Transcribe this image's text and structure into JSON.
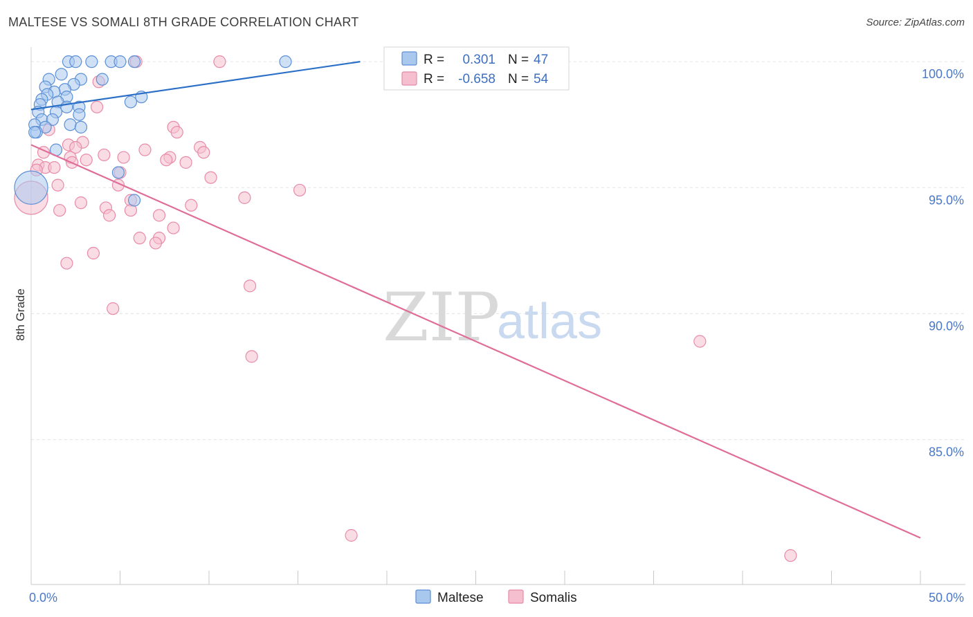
{
  "title": "MALTESE VS SOMALI 8TH GRADE CORRELATION CHART",
  "source": "Source: ZipAtlas.com",
  "watermark": {
    "zip": "ZIP",
    "atlas": "atlas"
  },
  "colors": {
    "maltese_fill": "#a9c8ee",
    "maltese_stroke": "#5b8fd6",
    "maltese_line": "#2b6fc7",
    "somali_fill": "#f6bfd0",
    "somali_stroke": "#e88aa8",
    "somali_line": "#e06d98",
    "grid": "#e3e3e3",
    "tick_text": "#4a78c8"
  },
  "legend": {
    "rows": [
      {
        "r_label": "R =",
        "r_value": "0.301",
        "n_label": "N =",
        "n_value": "47"
      },
      {
        "r_label": "R =",
        "r_value": "-0.658",
        "n_label": "N =",
        "n_value": "54"
      }
    ]
  },
  "bottom_legend": [
    "Maltese",
    "Somalis"
  ],
  "chart_data": {
    "type": "scatter",
    "title": "MALTESE VS SOMALI 8TH GRADE CORRELATION CHART",
    "xlabel": "",
    "ylabel": "8th Grade",
    "xlim": [
      0,
      50
    ],
    "ylim": [
      79.8,
      100.8
    ],
    "x_tick_labels": [
      "0.0%",
      "50.0%"
    ],
    "y_ticks": [
      100,
      95,
      90,
      85
    ],
    "y_tick_labels": [
      "100.0%",
      "95.0%",
      "90.0%",
      "85.0%"
    ],
    "series": [
      {
        "name": "Maltese",
        "r": 0.301,
        "n": 47,
        "trend": {
          "x": [
            0,
            18.5
          ],
          "y": [
            98.1,
            100.0
          ]
        },
        "points": [
          {
            "x": 2.1,
            "y": 100.0
          },
          {
            "x": 2.5,
            "y": 100.0
          },
          {
            "x": 3.4,
            "y": 100.0
          },
          {
            "x": 4.5,
            "y": 100.0
          },
          {
            "x": 5.0,
            "y": 100.0
          },
          {
            "x": 5.8,
            "y": 100.0
          },
          {
            "x": 14.3,
            "y": 100.0
          },
          {
            "x": 1.7,
            "y": 99.5
          },
          {
            "x": 1.0,
            "y": 99.3
          },
          {
            "x": 2.8,
            "y": 99.3
          },
          {
            "x": 4.0,
            "y": 99.3
          },
          {
            "x": 2.4,
            "y": 99.1
          },
          {
            "x": 0.8,
            "y": 99.0
          },
          {
            "x": 1.9,
            "y": 98.9
          },
          {
            "x": 1.3,
            "y": 98.8
          },
          {
            "x": 0.9,
            "y": 98.7
          },
          {
            "x": 2.0,
            "y": 98.6
          },
          {
            "x": 6.2,
            "y": 98.6
          },
          {
            "x": 0.6,
            "y": 98.5
          },
          {
            "x": 1.5,
            "y": 98.4
          },
          {
            "x": 5.6,
            "y": 98.4
          },
          {
            "x": 0.5,
            "y": 98.3
          },
          {
            "x": 2.7,
            "y": 98.2
          },
          {
            "x": 2.0,
            "y": 98.2
          },
          {
            "x": 0.4,
            "y": 98.0
          },
          {
            "x": 1.4,
            "y": 98.0
          },
          {
            "x": 2.7,
            "y": 97.9
          },
          {
            "x": 0.6,
            "y": 97.7
          },
          {
            "x": 1.2,
            "y": 97.7
          },
          {
            "x": 2.2,
            "y": 97.5
          },
          {
            "x": 0.2,
            "y": 97.5
          },
          {
            "x": 0.8,
            "y": 97.4
          },
          {
            "x": 2.8,
            "y": 97.4
          },
          {
            "x": 0.3,
            "y": 97.2
          },
          {
            "x": 0.2,
            "y": 97.2
          },
          {
            "x": 1.4,
            "y": 96.5
          },
          {
            "x": 4.9,
            "y": 95.6
          },
          {
            "x": 5.8,
            "y": 94.5
          },
          {
            "x": 0.0,
            "y": 95.0,
            "large": true
          }
        ]
      },
      {
        "name": "Somalis",
        "r": -0.658,
        "n": 54,
        "trend": {
          "x": [
            0,
            50
          ],
          "y": [
            96.7,
            81.1
          ]
        },
        "points": [
          {
            "x": 5.9,
            "y": 100.0
          },
          {
            "x": 10.6,
            "y": 100.0
          },
          {
            "x": 3.8,
            "y": 99.2
          },
          {
            "x": 3.7,
            "y": 98.2
          },
          {
            "x": 8.0,
            "y": 97.4
          },
          {
            "x": 8.2,
            "y": 97.2
          },
          {
            "x": 1.0,
            "y": 97.3
          },
          {
            "x": 2.9,
            "y": 96.8
          },
          {
            "x": 2.1,
            "y": 96.7
          },
          {
            "x": 2.5,
            "y": 96.6
          },
          {
            "x": 9.5,
            "y": 96.6
          },
          {
            "x": 6.4,
            "y": 96.5
          },
          {
            "x": 9.7,
            "y": 96.4
          },
          {
            "x": 0.7,
            "y": 96.4
          },
          {
            "x": 2.2,
            "y": 96.2
          },
          {
            "x": 4.1,
            "y": 96.3
          },
          {
            "x": 5.2,
            "y": 96.2
          },
          {
            "x": 7.8,
            "y": 96.2
          },
          {
            "x": 3.1,
            "y": 96.1
          },
          {
            "x": 2.3,
            "y": 96.0
          },
          {
            "x": 7.6,
            "y": 96.1
          },
          {
            "x": 8.7,
            "y": 96.0
          },
          {
            "x": 0.4,
            "y": 95.9
          },
          {
            "x": 0.8,
            "y": 95.8
          },
          {
            "x": 1.3,
            "y": 95.8
          },
          {
            "x": 0.3,
            "y": 95.7
          },
          {
            "x": 5.0,
            "y": 95.6
          },
          {
            "x": 10.1,
            "y": 95.4
          },
          {
            "x": 1.5,
            "y": 95.1
          },
          {
            "x": 4.9,
            "y": 95.1
          },
          {
            "x": 15.1,
            "y": 94.9
          },
          {
            "x": 12.0,
            "y": 94.6
          },
          {
            "x": 5.6,
            "y": 94.5
          },
          {
            "x": 2.8,
            "y": 94.4
          },
          {
            "x": 9.0,
            "y": 94.3
          },
          {
            "x": 4.2,
            "y": 94.2
          },
          {
            "x": 1.6,
            "y": 94.1
          },
          {
            "x": 5.6,
            "y": 94.1
          },
          {
            "x": 4.4,
            "y": 93.9
          },
          {
            "x": 7.2,
            "y": 93.9
          },
          {
            "x": 8.0,
            "y": 93.4
          },
          {
            "x": 6.1,
            "y": 93.0
          },
          {
            "x": 7.2,
            "y": 93.0
          },
          {
            "x": 7.0,
            "y": 92.8
          },
          {
            "x": 3.5,
            "y": 92.4
          },
          {
            "x": 2.0,
            "y": 92.0
          },
          {
            "x": 12.3,
            "y": 91.1
          },
          {
            "x": 4.6,
            "y": 90.2
          },
          {
            "x": 12.4,
            "y": 88.3
          },
          {
            "x": 37.6,
            "y": 88.9
          },
          {
            "x": 18.0,
            "y": 81.2
          },
          {
            "x": 42.7,
            "y": 80.4
          },
          {
            "x": 0.0,
            "y": 94.6,
            "large": true
          }
        ]
      }
    ]
  }
}
